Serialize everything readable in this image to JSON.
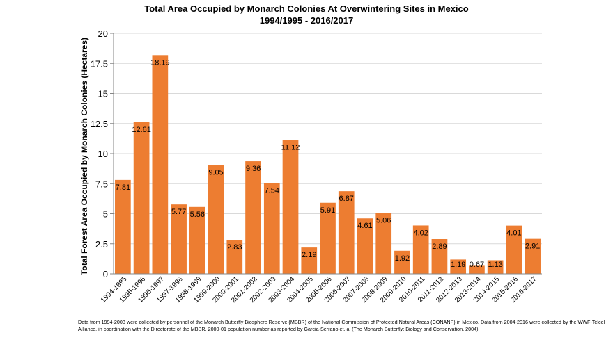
{
  "chart_data": {
    "type": "bar",
    "title": "Total Area Occupied by Monarch Colonies At Overwintering Sites in Mexico",
    "subtitle": "1994/1995 - 2016/2017",
    "xlabel": "",
    "ylabel": "Total Forest Area Occupied by Monarch Colonies (Hectares)",
    "ylim": [
      0,
      20
    ],
    "yticks": [
      0,
      2.5,
      5,
      7.5,
      10,
      12.5,
      15,
      17.5,
      20
    ],
    "ytick_labels": [
      "0",
      "2.5",
      "5",
      "7.5",
      "10",
      "12.5",
      "15",
      "17.5",
      "20"
    ],
    "grid": true,
    "bar_color": "#ED7D31",
    "categories": [
      "1994-1995",
      "1995-1996",
      "1996-1997",
      "1997-1998",
      "1998-1999",
      "1999-2000",
      "2000-2001",
      "2001-2002",
      "2002-2003",
      "2003-2004",
      "2004-2005",
      "2005-2006",
      "2006-2007",
      "2007-2008",
      "2008-2009",
      "2009-2010",
      "2010-2011",
      "2011-2012",
      "2012-2013",
      "2013-2014",
      "2014-2015",
      "2015-2016",
      "2016-2017"
    ],
    "values": [
      7.81,
      12.61,
      18.19,
      5.77,
      5.56,
      9.05,
      2.83,
      9.36,
      7.54,
      11.12,
      2.19,
      5.91,
      6.87,
      4.61,
      5.06,
      1.92,
      4.02,
      2.89,
      1.19,
      0.67,
      1.13,
      4.01,
      2.91
    ],
    "data_labels": [
      "7.81",
      "12.61",
      "18.19",
      "5.77",
      "5.56",
      "9.05",
      "2.83",
      "9.36",
      "7.54",
      "11.12",
      "2.19",
      "5.91",
      "6.87",
      "4.61",
      "5.06",
      "1.92",
      "4.02",
      "2.89",
      "1.19",
      "0.67",
      "1.13",
      "4.01",
      "2.91"
    ]
  },
  "footnote": "Data from 1994-2003 were collected by personnel of the Monarch Butterfly Biosphere Reserve (MBBR) of the National Commission of Protected Natural Areas (CONANP) in Mexico. Data from 2004-2016 were collected by the WWF-Telcel Alliance, in coordination with the Directorate of the MBBR. 2000-01 population number as reported by Garcia-Serrano et. al (The Monarch Butterfly: Biology and Conservation, 2004)"
}
